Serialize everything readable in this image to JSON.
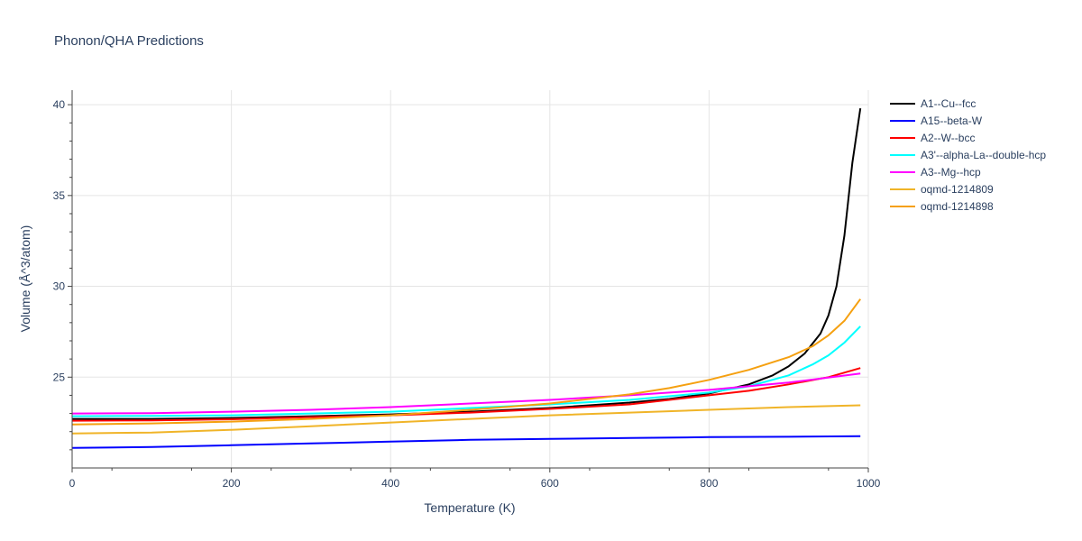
{
  "chart_data": {
    "type": "line",
    "title": "Phonon/QHA Predictions",
    "xlabel": "Temperature (K)",
    "ylabel": "Volume (Å^3/atom)",
    "xlim": [
      0,
      1000
    ],
    "ylim": [
      20.0,
      40.8
    ],
    "xticks": [
      0,
      200,
      400,
      600,
      800,
      1000
    ],
    "yticks": [
      25,
      30,
      35,
      40
    ],
    "grid": true,
    "legend_position": "top-right",
    "series": [
      {
        "name": "A1--Cu--fcc",
        "color": "#000000",
        "x": [
          0,
          100,
          200,
          300,
          400,
          500,
          600,
          700,
          750,
          800,
          850,
          880,
          900,
          920,
          940,
          950,
          960,
          970,
          980,
          990
        ],
        "y": [
          22.7,
          22.7,
          22.75,
          22.85,
          22.95,
          23.1,
          23.3,
          23.6,
          23.8,
          24.1,
          24.6,
          25.1,
          25.6,
          26.3,
          27.4,
          28.4,
          30.0,
          32.8,
          36.8,
          39.8
        ]
      },
      {
        "name": "A15--beta-W",
        "color": "#0000ff",
        "x": [
          0,
          100,
          200,
          300,
          400,
          500,
          600,
          700,
          800,
          900,
          990
        ],
        "y": [
          21.1,
          21.15,
          21.25,
          21.35,
          21.45,
          21.55,
          21.6,
          21.65,
          21.7,
          21.72,
          21.75
        ]
      },
      {
        "name": "A2--W--bcc",
        "color": "#ff0000",
        "x": [
          0,
          100,
          200,
          300,
          400,
          500,
          600,
          700,
          800,
          850,
          900,
          950,
          990
        ],
        "y": [
          22.6,
          22.62,
          22.68,
          22.8,
          22.9,
          23.05,
          23.25,
          23.5,
          24.0,
          24.25,
          24.6,
          25.0,
          25.5
        ]
      },
      {
        "name": "A3'--alpha-La--double-hcp",
        "color": "#00ffff",
        "x": [
          0,
          100,
          200,
          300,
          400,
          500,
          600,
          700,
          800,
          850,
          900,
          930,
          950,
          970,
          990
        ],
        "y": [
          22.85,
          22.87,
          22.9,
          23.0,
          23.1,
          23.3,
          23.5,
          23.75,
          24.15,
          24.5,
          25.1,
          25.7,
          26.2,
          26.9,
          27.8
        ]
      },
      {
        "name": "A3--Mg--hcp",
        "color": "#ff00ff",
        "x": [
          0,
          100,
          200,
          300,
          400,
          500,
          600,
          700,
          800,
          900,
          990
        ],
        "y": [
          23.0,
          23.02,
          23.1,
          23.2,
          23.35,
          23.55,
          23.75,
          24.0,
          24.3,
          24.7,
          25.2
        ]
      },
      {
        "name": "oqmd-1214809",
        "color": "#f0b428",
        "x": [
          0,
          100,
          200,
          300,
          400,
          500,
          600,
          700,
          800,
          900,
          990
        ],
        "y": [
          21.9,
          21.95,
          22.1,
          22.3,
          22.5,
          22.7,
          22.9,
          23.05,
          23.2,
          23.35,
          23.45
        ]
      },
      {
        "name": "oqmd-1214898",
        "color": "#f5a010",
        "x": [
          0,
          100,
          200,
          300,
          400,
          500,
          600,
          700,
          750,
          800,
          850,
          900,
          930,
          950,
          970,
          990
        ],
        "y": [
          22.4,
          22.45,
          22.55,
          22.7,
          22.9,
          23.2,
          23.55,
          24.05,
          24.4,
          24.85,
          25.4,
          26.1,
          26.7,
          27.3,
          28.1,
          29.3
        ]
      }
    ]
  }
}
